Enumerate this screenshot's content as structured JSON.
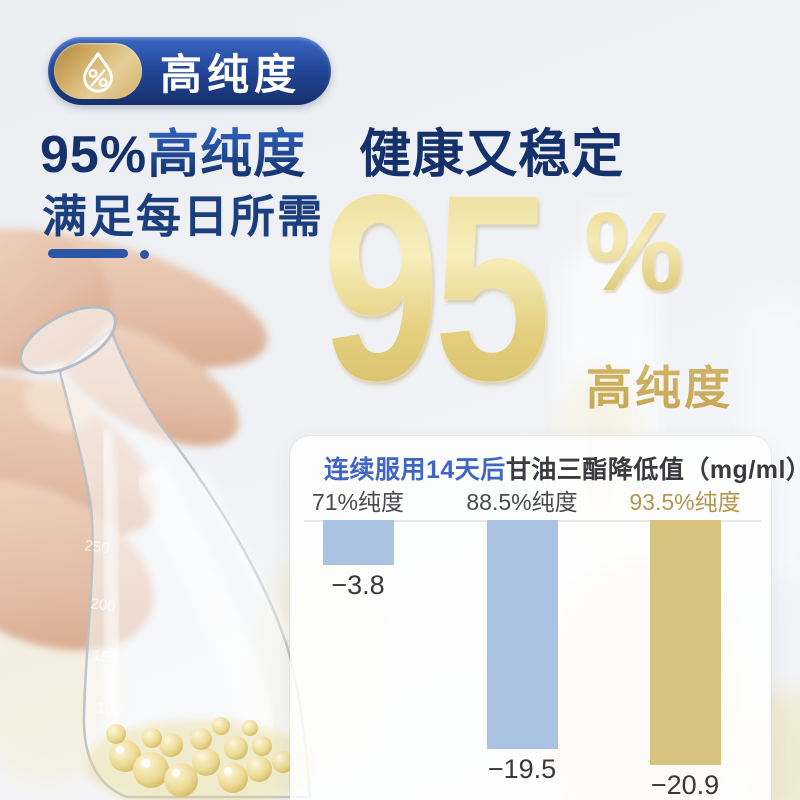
{
  "badge": {
    "label": "高纯度",
    "icon": "droplet-percent-icon",
    "pill_color": "#24499c",
    "gold_color": "#d9bc78"
  },
  "headline": {
    "line1_prefix": "95%",
    "line1_highlight": "高纯度",
    "line1_rest": "　健康又稳定",
    "line2": "满足每日所需",
    "accent_color": "#14316b"
  },
  "hero": {
    "number": "95",
    "percent": "%",
    "caption": "高纯度",
    "gold_color": "#e4cf7f"
  },
  "chart_data": {
    "type": "bar",
    "title_highlight": "连续服用14天后",
    "title_rest": "甘油三酯降低值（mg/ml）",
    "categories": [
      "71%纯度",
      "88.5%纯度",
      "93.5%纯度"
    ],
    "values": [
      -3.8,
      -19.5,
      -20.9
    ],
    "value_labels": [
      "−3.8",
      "−19.5",
      "−20.9"
    ],
    "bar_colors": [
      "#aac3e3",
      "#aac3e3",
      "#d6c37d"
    ],
    "category_colors": [
      "#4a4a4d",
      "#4a4a4d",
      "#b3974e"
    ],
    "orientation": "downward-from-baseline",
    "baseline_value": 0,
    "grid": false,
    "legend": false,
    "unit": "mg/ml"
  }
}
